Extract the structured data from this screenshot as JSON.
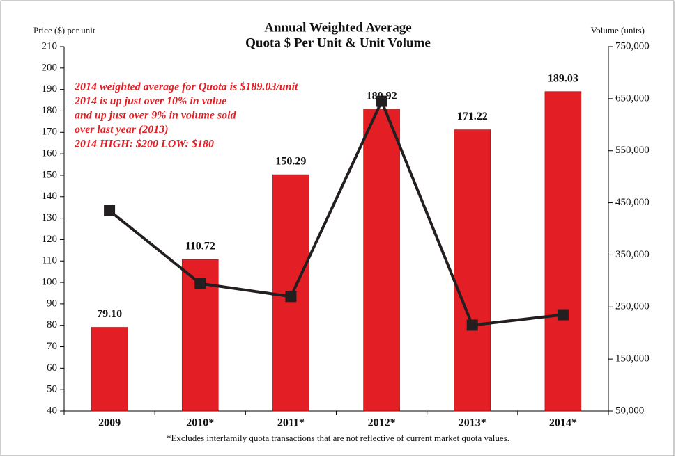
{
  "chart_data": {
    "type": "bar",
    "title": [
      "Annual Weighted Average",
      "Quota $ Per Unit & Unit Volume"
    ],
    "ylabel": "Price ($) per unit",
    "y2label": "Volume (units)",
    "categories": [
      "2009",
      "2010*",
      "2011*",
      "2012*",
      "2013*",
      "2014*"
    ],
    "series": [
      {
        "type": "bar",
        "color": "#e31e24",
        "values": [
          79.1,
          110.72,
          150.29,
          180.92,
          171.22,
          189.03
        ],
        "value_labels": [
          "79.10",
          "110.72",
          "150.29",
          "180.92",
          "171.22",
          "189.03"
        ]
      },
      {
        "type": "line",
        "axis": "y2",
        "color": "#231f20",
        "values": [
          435000,
          295000,
          270000,
          645000,
          215000,
          235000
        ]
      }
    ],
    "ylim": [
      40,
      210
    ],
    "yticks": [
      40,
      50,
      60,
      70,
      80,
      90,
      100,
      110,
      120,
      130,
      140,
      150,
      160,
      170,
      180,
      190,
      200,
      210
    ],
    "y2lim": [
      50000,
      750000
    ],
    "y2ticks": [
      {
        "value": 50000,
        "label": "50,000"
      },
      {
        "value": 150000,
        "label": "150,000"
      },
      {
        "value": 250000,
        "label": "250,000"
      },
      {
        "value": 350000,
        "label": "350,000"
      },
      {
        "value": 450000,
        "label": "450,000"
      },
      {
        "value": 550000,
        "label": "550,000"
      },
      {
        "value": 650000,
        "label": "650,000"
      },
      {
        "value": 750000,
        "label": "750,000"
      }
    ],
    "annotations": [
      "2014 weighted average for Quota is $189.03/unit",
      "2014 is up just over 10% in value",
      "and up just over 9% in volume sold",
      "over last year (2013)",
      "2014 HIGH: $200 LOW: $180"
    ],
    "footnote": "*Excludes interfamily quota transactions that are not reflective of current market quota values."
  }
}
